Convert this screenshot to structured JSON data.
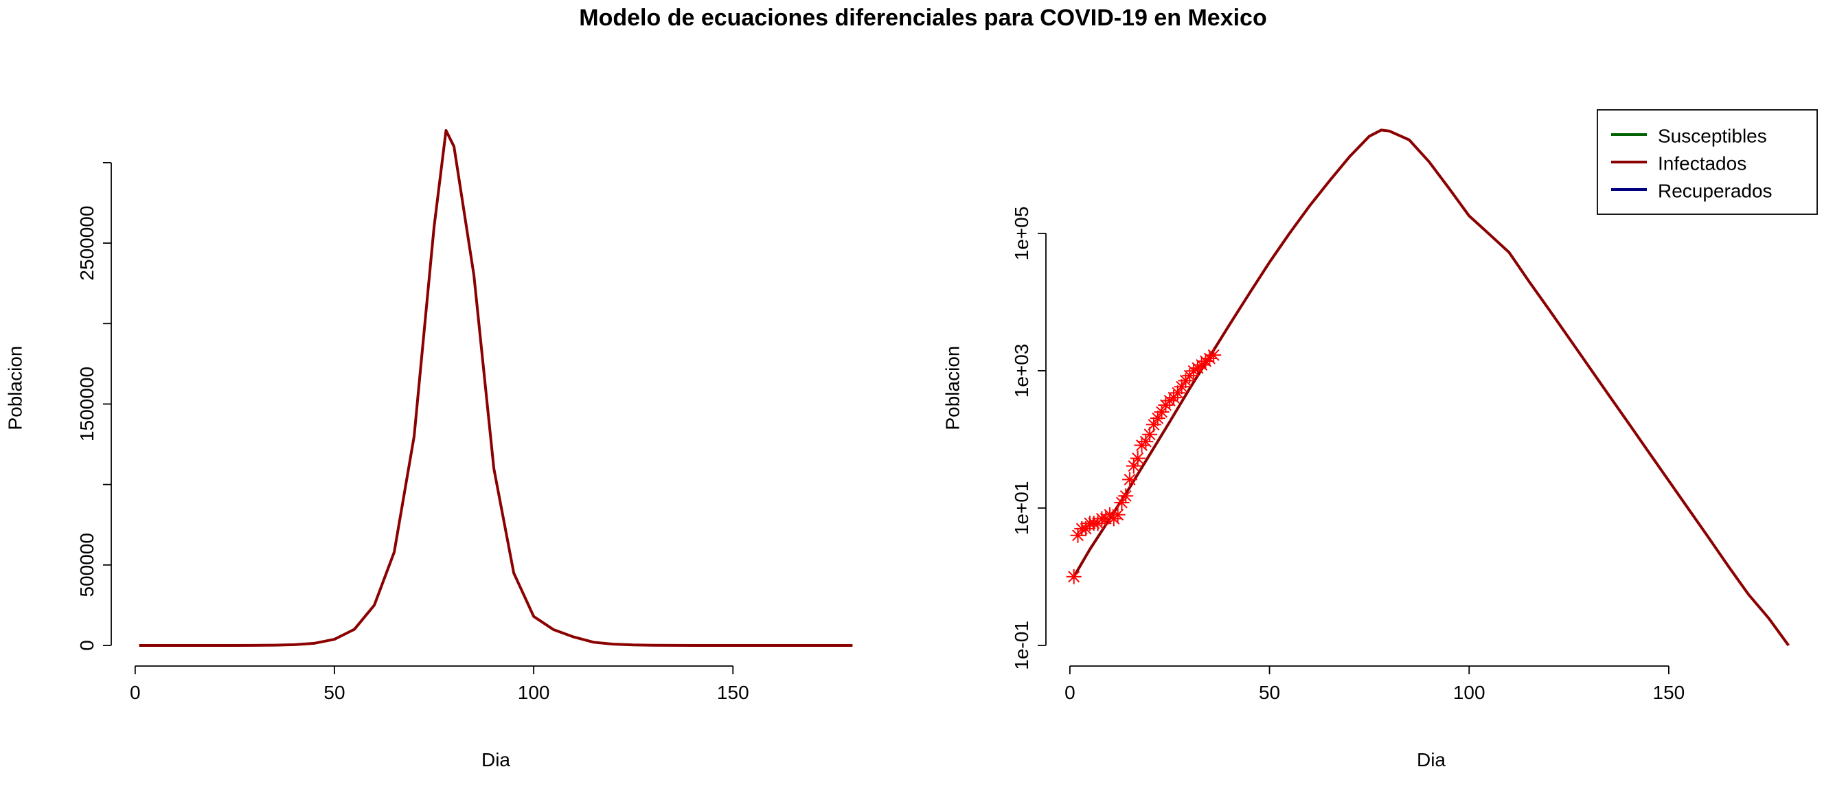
{
  "title": "Modelo de ecuaciones diferenciales para COVID-19 en Mexico",
  "chart_data": [
    {
      "type": "line",
      "xlabel": "Dia",
      "ylabel": "Poblacion",
      "x": [
        1,
        5,
        10,
        15,
        20,
        25,
        30,
        35,
        40,
        45,
        50,
        55,
        60,
        65,
        70,
        75,
        78,
        80,
        85,
        90,
        95,
        100,
        105,
        110,
        115,
        120,
        125,
        130,
        135,
        140,
        145,
        150,
        155,
        160,
        165,
        170,
        175,
        180
      ],
      "series": [
        {
          "color": "#8b0000",
          "values": [
            1,
            2.5,
            7,
            20,
            60,
            180,
            550,
            1600,
            4700,
            13500,
            38000,
            100000,
            250000,
            580000,
            1300000,
            2600000,
            3200000,
            3100000,
            2300000,
            1100000,
            450000,
            180000,
            98000,
            53000,
            20000,
            7800,
            3000,
            1150,
            440,
            170,
            65,
            25,
            9.6,
            3.7,
            1.4,
            0.55,
            0.25,
            0.1
          ]
        }
      ],
      "xlim": [
        -6,
        187
      ],
      "ylim": [
        -128000,
        3328000
      ],
      "xticks": [
        0,
        50,
        100,
        150
      ],
      "yticks": [
        0,
        500000,
        {
          "value": 1000000,
          "label": null
        },
        1500000,
        {
          "value": 2000000,
          "label": null
        },
        2500000,
        {
          "value": 3000000,
          "label": null
        }
      ]
    },
    {
      "type": "line",
      "xlabel": "Dia",
      "ylabel": "Poblacion",
      "log_y": true,
      "x": [
        1,
        5,
        10,
        15,
        20,
        25,
        30,
        35,
        40,
        45,
        50,
        55,
        60,
        65,
        70,
        75,
        78,
        80,
        85,
        90,
        95,
        100,
        105,
        110,
        115,
        120,
        125,
        130,
        135,
        140,
        145,
        150,
        155,
        160,
        165,
        170,
        175,
        180
      ],
      "series": [
        {
          "color": "#8b0000",
          "values": [
            1,
            2.5,
            7,
            20,
            60,
            180,
            550,
            1600,
            4700,
            13500,
            38000,
            100000,
            250000,
            580000,
            1300000,
            2600000,
            3200000,
            3100000,
            2300000,
            1100000,
            450000,
            180000,
            98000,
            53000,
            20000,
            7800,
            3000,
            1150,
            440,
            170,
            65,
            25,
            9.6,
            3.7,
            1.4,
            0.55,
            0.25,
            0.1
          ]
        }
      ],
      "points": {
        "color": "#ff0000",
        "marker": "asterisk",
        "x": [
          1,
          2,
          3,
          4,
          5,
          6,
          7,
          8,
          9,
          10,
          11,
          12,
          13,
          14,
          15,
          16,
          17,
          18,
          19,
          20,
          21,
          22,
          23,
          24,
          25,
          26,
          27,
          28,
          29,
          30,
          31,
          32,
          33,
          34,
          35,
          36
        ],
        "y": [
          1,
          4,
          5,
          5,
          6,
          6,
          6,
          7,
          7,
          8,
          7,
          8,
          12,
          15,
          26,
          41,
          53,
          82,
          93,
          118,
          164,
          203,
          251,
          316,
          367,
          405,
          475,
          585,
          717,
          848,
          993,
          1094,
          1215,
          1378,
          1510,
          1688
        ]
      },
      "legend": {
        "position": "topright",
        "entries": [
          {
            "name": "Susceptibles",
            "color": "#006400"
          },
          {
            "name": "Infectados",
            "color": "#8b0000"
          },
          {
            "name": "Recuperados",
            "color": "#000080"
          }
        ]
      },
      "xlim": [
        -6,
        187
      ],
      "ylim": [
        0.05,
        6300000
      ],
      "xticks": [
        0,
        50,
        100,
        150
      ],
      "yticks": [
        {
          "value": 0.1,
          "label": "1e-01"
        },
        {
          "value": 10,
          "label": "1e+01"
        },
        {
          "value": 1000,
          "label": "1e+03"
        },
        {
          "value": 100000,
          "label": "1e+05"
        }
      ]
    }
  ]
}
